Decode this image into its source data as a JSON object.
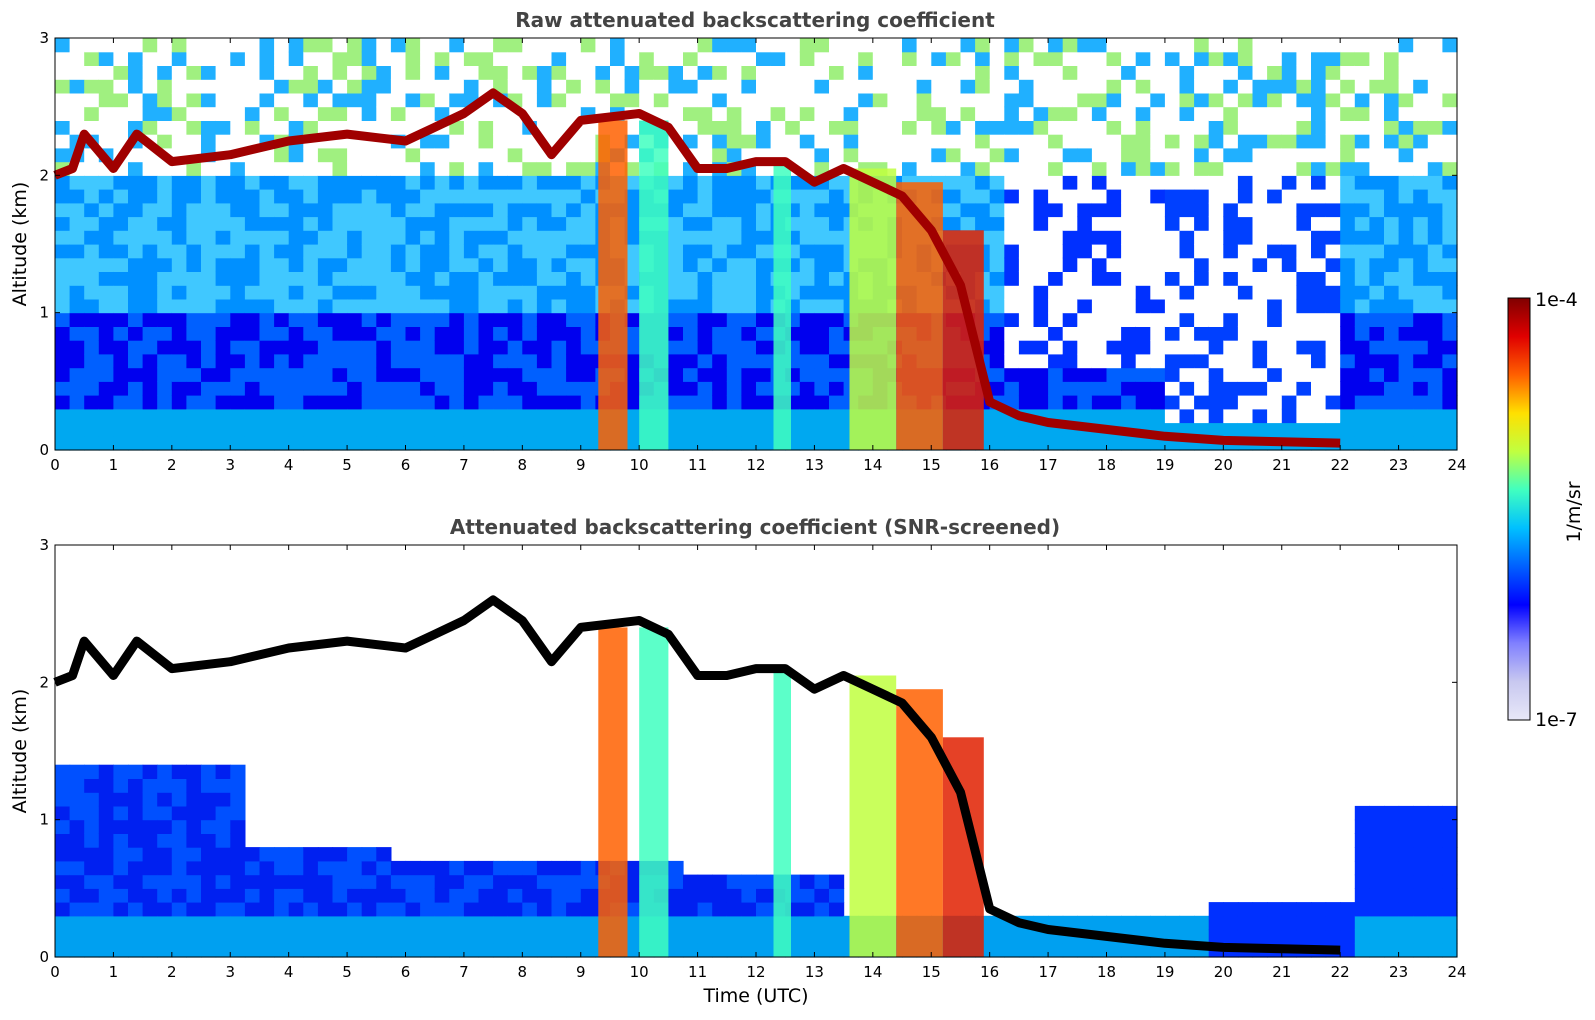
{
  "chart_data": [
    {
      "type": "heatmap",
      "title": "Raw attenuated backscattering coefficient",
      "xlabel": "",
      "ylabel": "Altitude (km)",
      "xlim": [
        0,
        24
      ],
      "ylim": [
        0,
        3
      ],
      "x_ticks": [
        "0",
        "1",
        "2",
        "3",
        "4",
        "5",
        "6",
        "7",
        "8",
        "9",
        "10",
        "11",
        "12",
        "13",
        "14",
        "15",
        "16",
        "17",
        "18",
        "19",
        "20",
        "21",
        "22",
        "23",
        "24"
      ],
      "y_ticks": [
        "0",
        "1",
        "2",
        "3"
      ],
      "cloud_layer": {
        "time": [
          0,
          0.3,
          0.5,
          0.7,
          1.0,
          1.4,
          2.0,
          3.0,
          4.0,
          5.0,
          6.0,
          6.5,
          7.0,
          7.5,
          8.0,
          8.5,
          9.0,
          10.0,
          10.5,
          11.0,
          11.5,
          12.0,
          12.5,
          13.0,
          13.5,
          14.0,
          14.5,
          15.0,
          15.5,
          16.0,
          16.5,
          17.0,
          18.0,
          19.0,
          20.0,
          21.0,
          22.0
        ],
        "altitude_km": [
          2.0,
          2.05,
          2.3,
          2.2,
          2.05,
          2.3,
          2.1,
          2.15,
          2.25,
          2.3,
          2.25,
          2.35,
          2.45,
          2.6,
          2.45,
          2.15,
          2.4,
          2.45,
          2.35,
          2.05,
          2.05,
          2.1,
          2.1,
          1.95,
          2.05,
          1.95,
          1.85,
          1.6,
          1.2,
          0.35,
          0.25,
          0.2,
          0.15,
          0.1,
          0.07,
          0.06,
          0.05
        ]
      }
    },
    {
      "type": "heatmap",
      "title": "Attenuated backscattering coefficient (SNR-screened)",
      "xlabel": "Time (UTC)",
      "ylabel": "Altitude (km)",
      "xlim": [
        0,
        24
      ],
      "ylim": [
        0,
        3
      ],
      "x_ticks": [
        "0",
        "1",
        "2",
        "3",
        "4",
        "5",
        "6",
        "7",
        "8",
        "9",
        "10",
        "11",
        "12",
        "13",
        "14",
        "15",
        "16",
        "17",
        "18",
        "19",
        "20",
        "21",
        "22",
        "23",
        "24"
      ],
      "y_ticks": [
        "0",
        "1",
        "2",
        "3"
      ],
      "cloud_layer": {
        "time": [
          0,
          0.3,
          0.5,
          0.7,
          1.0,
          1.4,
          2.0,
          3.0,
          4.0,
          5.0,
          6.0,
          6.5,
          7.0,
          7.5,
          8.0,
          8.5,
          9.0,
          10.0,
          10.5,
          11.0,
          11.5,
          12.0,
          12.5,
          13.0,
          13.5,
          14.0,
          14.5,
          15.0,
          15.5,
          16.0,
          16.5,
          17.0,
          18.0,
          19.0,
          20.0,
          21.0,
          22.0
        ],
        "altitude_km": [
          2.0,
          2.05,
          2.3,
          2.2,
          2.05,
          2.3,
          2.1,
          2.15,
          2.25,
          2.3,
          2.25,
          2.35,
          2.45,
          2.6,
          2.45,
          2.15,
          2.4,
          2.45,
          2.35,
          2.05,
          2.05,
          2.1,
          2.1,
          1.95,
          2.05,
          1.95,
          1.85,
          1.6,
          1.2,
          0.35,
          0.25,
          0.2,
          0.15,
          0.1,
          0.07,
          0.06,
          0.05
        ]
      }
    }
  ],
  "colorbar": {
    "label": "1/m/sr",
    "max_label": "1e-4",
    "min_label": "1e-7",
    "scale": "log",
    "colors": [
      "#e8e8f8",
      "#c8c8f0",
      "#8080ff",
      "#0000ff",
      "#0060ff",
      "#00c0ff",
      "#40ffc0",
      "#c0ff40",
      "#ffe000",
      "#ff6000",
      "#e00000",
      "#800000"
    ]
  }
}
